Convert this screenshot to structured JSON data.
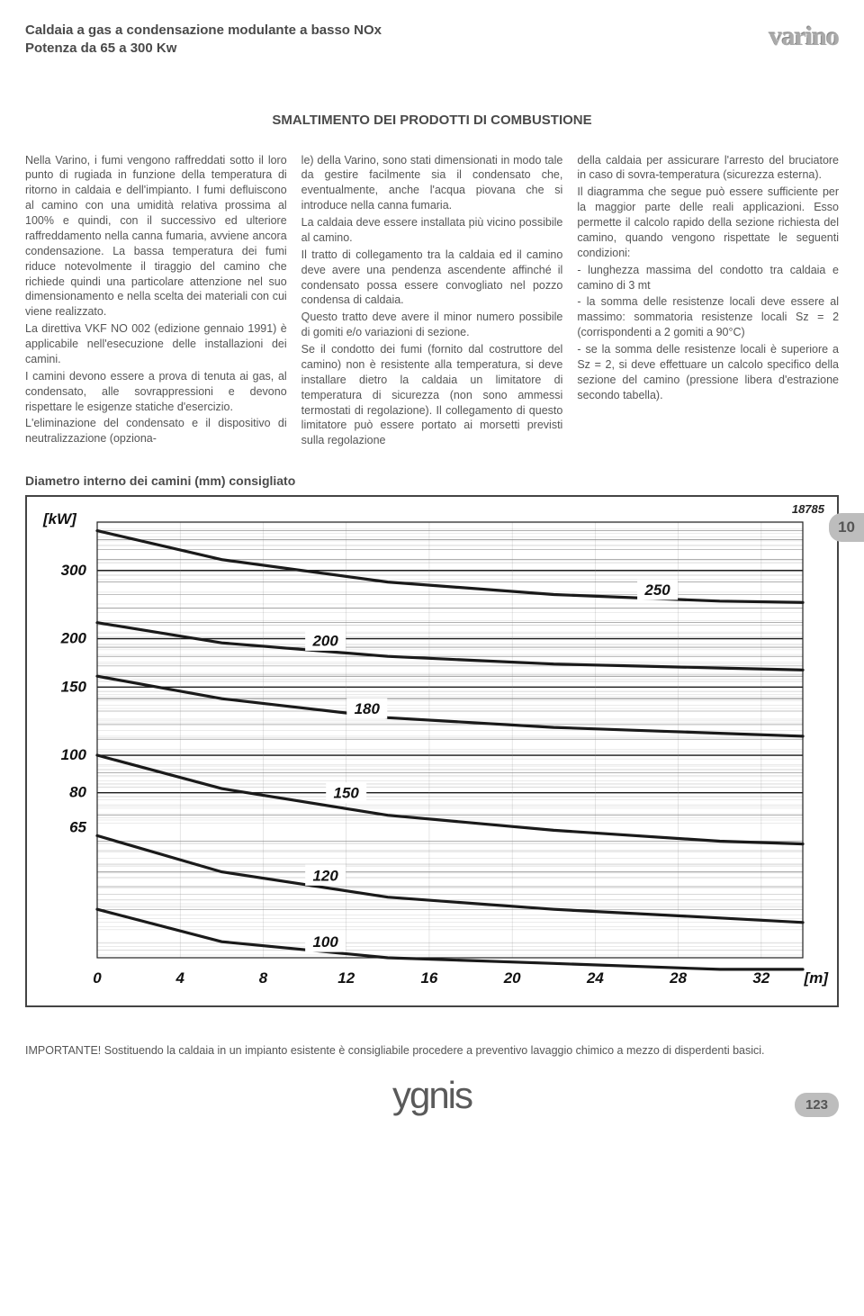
{
  "header": {
    "line1": "Caldaia a gas a condensazione modulante a basso NOx",
    "line2": "Potenza da 65 a 300 Kw",
    "brand": "varino"
  },
  "section_title": "SMALTIMENTO DEI PRODOTTI DI COMBUSTIONE",
  "side_tab": "10",
  "body": {
    "col1": "Nella Varino, i fumi vengono raffreddati sotto il loro punto di rugiada in funzione della temperatura di ritorno in caldaia e dell'impianto. I fumi defluiscono al camino con una umidità relativa prossima al 100% e quindi, con il successivo ed ulteriore raffreddamento nella canna fumaria, avviene ancora condensazione. La bassa temperatura dei fumi riduce notevolmente il tiraggio del camino che richiede quindi una particolare attenzione nel suo dimensionamento e nella scelta dei materiali con cui viene realizzato.\nLa direttiva VKF NO 002 (edizione gennaio 1991) è applicabile nell'esecuzione delle installazioni dei camini.\nI camini devono essere a prova di tenuta ai gas, al condensato, alle sovrappressioni e devono rispettare le esigenze statiche d'esercizio.\nL'eliminazione del condensato e il dispositivo di neutralizzazione (opziona-",
    "col2": "le) della Varino, sono stati dimensionati in modo tale da gestire facilmente sia il condensato che, eventualmente, anche l'acqua piovana che si introduce nella canna fumaria.\nLa caldaia deve essere installata più vicino possibile al camino.\nIl tratto di collegamento tra la caldaia ed il camino deve avere una pendenza ascendente affinché il condensato possa essere convogliato nel pozzo condensa di caldaia.\nQuesto tratto deve avere il minor numero possibile di gomiti e/o variazioni di sezione.\nSe il condotto dei fumi (fornito dal costruttore del camino) non è resistente alla temperatura, si deve installare dietro la caldaia un limitatore di temperatura di sicurezza (non sono ammessi termostati di regolazione). Il collegamento di questo limitatore può essere portato ai morsetti previsti sulla regolazione",
    "col3": "della caldaia per assicurare l'arresto del bruciatore in caso di sovra-temperatura (sicurezza esterna).\nIl diagramma che segue può essere sufficiente per la maggior parte delle reali applicazioni. Esso permette il calcolo rapido della sezione richiesta del camino, quando vengono rispettate le seguenti condizioni:\n- lunghezza massima del condotto tra caldaia e camino di 3 mt\n- la somma delle resistenze locali deve essere al massimo: sommatoria resistenze locali Sz = 2 (corrispondenti a 2 gomiti a 90°C)\n- se la somma delle resistenze locali è superiore a Sz = 2, si deve effettuare un calcolo specifico della sezione del camino (pressione libera d'estrazione secondo tabella)."
  },
  "chart": {
    "title": "Diametro interno dei camini (mm) consigliato",
    "ref_number": "18785",
    "y_unit": "[kW]",
    "x_unit": "[m]",
    "y_ticks": [
      65,
      80,
      100,
      150,
      200,
      300
    ],
    "x_ticks": [
      0,
      4,
      8,
      12,
      16,
      20,
      24,
      28,
      32
    ],
    "x_range": [
      0,
      34
    ],
    "y_range_log": [
      30,
      400
    ],
    "curve_labels": [
      "100",
      "120",
      "150",
      "180",
      "200",
      "250"
    ],
    "curve_colors": "#1a1a1a",
    "grid_color": "#1a1a1a",
    "background": "#ffffff",
    "series": {
      "250": [
        [
          0,
          380
        ],
        [
          6,
          320
        ],
        [
          14,
          280
        ],
        [
          22,
          260
        ],
        [
          30,
          250
        ],
        [
          34,
          248
        ]
      ],
      "200": [
        [
          0,
          220
        ],
        [
          6,
          195
        ],
        [
          14,
          180
        ],
        [
          22,
          172
        ],
        [
          30,
          168
        ],
        [
          34,
          166
        ]
      ],
      "180": [
        [
          0,
          160
        ],
        [
          6,
          140
        ],
        [
          14,
          125
        ],
        [
          22,
          118
        ],
        [
          30,
          114
        ],
        [
          34,
          112
        ]
      ],
      "150": [
        [
          0,
          100
        ],
        [
          6,
          82
        ],
        [
          14,
          70
        ],
        [
          22,
          64
        ],
        [
          30,
          60
        ],
        [
          34,
          59
        ]
      ],
      "120": [
        [
          0,
          62
        ],
        [
          6,
          50
        ],
        [
          14,
          43
        ],
        [
          22,
          40
        ],
        [
          30,
          38
        ],
        [
          34,
          37
        ]
      ],
      "100": [
        [
          0,
          40
        ],
        [
          6,
          33
        ],
        [
          14,
          30
        ],
        [
          22,
          29
        ],
        [
          30,
          28
        ],
        [
          34,
          28
        ]
      ]
    },
    "label_positions": {
      "250": [
        27,
        268
      ],
      "200": [
        11,
        198
      ],
      "180": [
        13,
        132
      ],
      "150": [
        12,
        80
      ],
      "120": [
        11,
        49
      ],
      "100": [
        11,
        33
      ]
    }
  },
  "note": "IMPORTANTE!  Sostituendo la caldaia in un impianto esistente è consigliabile procedere a preventivo lavaggio chimico a mezzo di disperdenti basici.",
  "footer": {
    "logo": "ygnis",
    "page_number": "123"
  }
}
